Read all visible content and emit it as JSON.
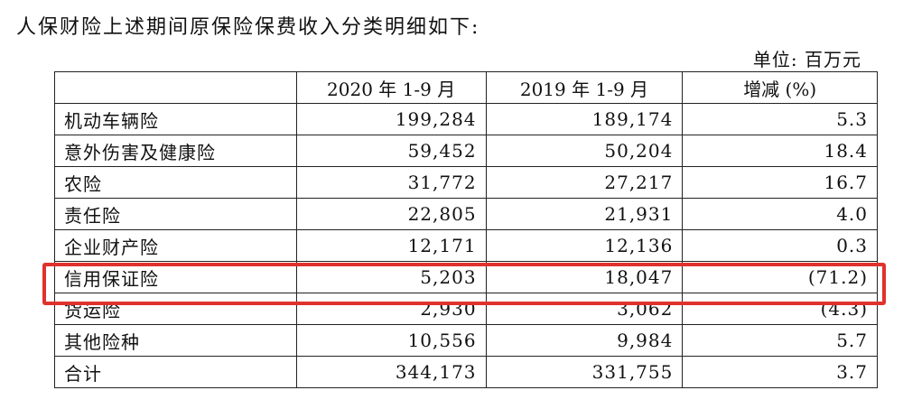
{
  "heading": "人保财险上述期间原保险保费收入分类明细如下:",
  "unit": "单位: 百万元",
  "table": {
    "headers": [
      "",
      "2020 年 1-9 月",
      "2019 年 1-9 月",
      "增减 (%)"
    ],
    "rows": [
      {
        "name": "机动车辆险",
        "v2020": "199,284",
        "v2019": "189,174",
        "change": "5.3"
      },
      {
        "name": "意外伤害及健康险",
        "v2020": "59,452",
        "v2019": "50,204",
        "change": "18.4"
      },
      {
        "name": "农险",
        "v2020": "31,772",
        "v2019": "27,217",
        "change": "16.7"
      },
      {
        "name": "责任险",
        "v2020": "22,805",
        "v2019": "21,931",
        "change": "4.0"
      },
      {
        "name": "企业财产险",
        "v2020": "12,171",
        "v2019": "12,136",
        "change": "0.3"
      },
      {
        "name": "信用保证险",
        "v2020": "5,203",
        "v2019": "18,047",
        "change": "(71.2)"
      },
      {
        "name": "货运险",
        "v2020": "2,930",
        "v2019": "3,062",
        "change": "(4.3)"
      },
      {
        "name": "其他险种",
        "v2020": "10,556",
        "v2019": "9,984",
        "change": "5.7"
      },
      {
        "name": "合计",
        "v2020": "344,173",
        "v2019": "331,755",
        "change": "3.7"
      }
    ]
  },
  "colors": {
    "highlight": "#e0322d"
  }
}
